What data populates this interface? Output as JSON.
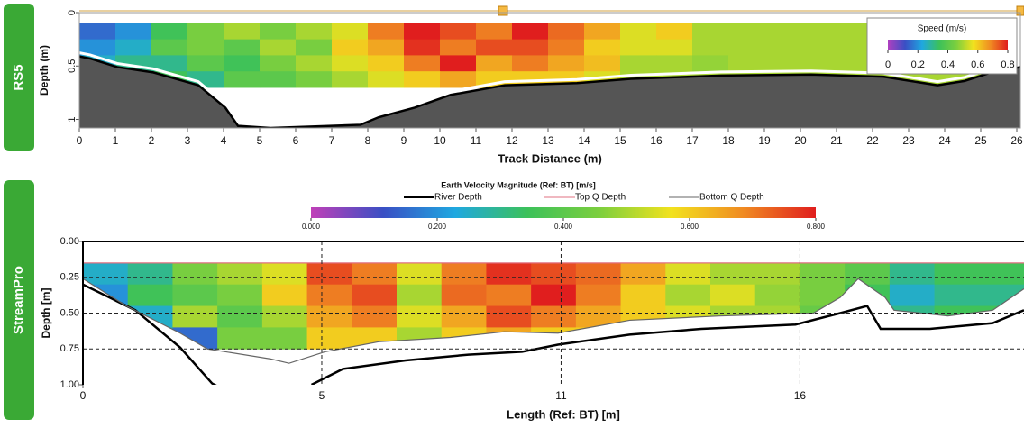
{
  "chart_data": [
    {
      "type": "heatmap",
      "label": "RS5",
      "xlabel": "Track Distance (m)",
      "ylabel": "Depth (m)",
      "xlim": [
        0,
        26.1
      ],
      "xticks": [
        0,
        1,
        2,
        3,
        4,
        5,
        6,
        7,
        8,
        9,
        10,
        11,
        12,
        13,
        14,
        15,
        16,
        17,
        18,
        19,
        20,
        21,
        22,
        23,
        24,
        25,
        26
      ],
      "ylim": [
        0,
        1.08
      ],
      "yticks": [
        0,
        0.5,
        1
      ],
      "x_edges": [
        0,
        1,
        2,
        3,
        4,
        5,
        6,
        7,
        8,
        9,
        10,
        11,
        12,
        13,
        14,
        15,
        16,
        17,
        18,
        19,
        20,
        21,
        22,
        23,
        24,
        25,
        26
      ],
      "depth_edges": [
        0.1,
        0.25,
        0.4,
        0.55,
        0.7
      ],
      "values": [
        [
          0.15,
          0.2,
          0.35,
          0.45,
          0.5,
          0.45,
          0.5,
          0.55,
          0.7,
          0.8,
          0.75,
          0.7,
          0.8,
          0.72,
          0.65,
          0.55,
          0.6,
          0.5,
          0.5,
          0.5,
          0.5,
          0.5,
          0.5,
          0.5,
          0.5,
          0.5
        ],
        [
          0.2,
          0.25,
          0.4,
          0.45,
          0.4,
          0.5,
          0.45,
          0.6,
          0.65,
          0.78,
          0.7,
          0.75,
          0.75,
          0.7,
          0.6,
          0.55,
          0.55,
          0.5,
          0.5,
          0.5,
          0.5,
          0.5,
          0.5,
          0.5,
          0.5,
          0.5
        ],
        [
          0.25,
          0.3,
          0.3,
          0.4,
          0.35,
          0.45,
          0.5,
          0.55,
          0.6,
          0.7,
          0.8,
          0.65,
          0.7,
          0.65,
          0.62,
          0.5,
          0.5,
          0.48,
          0.5,
          0.5,
          0.5,
          0.5,
          0.5,
          0.5,
          0.5,
          0.5
        ],
        [
          0.3,
          0.3,
          0.35,
          0.3,
          0.4,
          0.4,
          0.45,
          0.5,
          0.55,
          0.6,
          0.65,
          0.6,
          0.6,
          0.6,
          0.55,
          0.5,
          0.5,
          0.5,
          0.5,
          0.5,
          0.5,
          0.5,
          0.5,
          0.5,
          0.5,
          0.5
        ]
      ],
      "clim": [
        0,
        0.8
      ],
      "colorbar_title": "Speed (m/s)",
      "colorbar_ticks": [
        0,
        0.2,
        0.4,
        0.6,
        0.8
      ],
      "colorscale": [
        "#b040c0",
        "#3a4fc4",
        "#1fa8e0",
        "#3cc15a",
        "#7ccf3e",
        "#f2e21e",
        "#f08a22",
        "#e01e1e"
      ],
      "river_depth": {
        "color": "#000000",
        "fill": "#555555",
        "x": [
          0,
          0.3,
          1.05,
          2.05,
          3.3,
          4.05,
          4.4,
          5.3,
          7.8,
          8.3,
          9.3,
          10.3,
          11.8,
          13.8,
          15.3,
          17.8,
          20.3,
          22.3,
          23.8,
          24.55,
          25.3,
          26.1
        ],
        "values": [
          0.41,
          0.43,
          0.51,
          0.56,
          0.68,
          0.89,
          1.06,
          1.08,
          1.05,
          0.98,
          0.89,
          0.77,
          0.68,
          0.66,
          0.62,
          0.59,
          0.58,
          0.6,
          0.68,
          0.64,
          0.56,
          0.51
        ]
      }
    },
    {
      "type": "heatmap",
      "label": "StreamPro",
      "title": "Earth Velocity Magnitude (Ref: BT) [m/s]",
      "xlabel": "Length (Ref: BT) [m]",
      "ylabel": "Depth [m]",
      "xlim": [
        0,
        21
      ],
      "xticks": [
        0,
        {
          "value": 5.33,
          "label": "5"
        },
        {
          "value": 10.67,
          "label": "11"
        },
        16
      ],
      "ylim": [
        0,
        1
      ],
      "yticks": [
        {
          "value": 0,
          "label": "0.00"
        },
        {
          "value": 0.25,
          "label": "0.25"
        },
        {
          "value": 0.5,
          "label": "0.50"
        },
        {
          "value": 0.75,
          "label": "0.75"
        },
        {
          "value": 1,
          "label": "1.00"
        }
      ],
      "x_edges": [
        0,
        1,
        2,
        3,
        4,
        5,
        6,
        7,
        8,
        9,
        10,
        11,
        12,
        13,
        14,
        15,
        16,
        17,
        18,
        19,
        21
      ],
      "depth_edges": [
        0.15,
        0.3,
        0.45,
        0.6,
        0.75
      ],
      "values": [
        [
          0.25,
          0.3,
          0.45,
          0.5,
          0.55,
          0.75,
          0.7,
          0.55,
          0.7,
          0.78,
          0.75,
          0.72,
          0.65,
          0.55,
          0.5,
          0.5,
          0.45,
          0.4,
          0.3,
          0.35
        ],
        [
          0.2,
          0.35,
          0.4,
          0.45,
          0.6,
          0.7,
          0.75,
          0.5,
          0.72,
          0.7,
          0.8,
          0.7,
          0.6,
          0.5,
          0.55,
          0.48,
          0.45,
          0.35,
          0.25,
          0.3
        ],
        [
          0.3,
          0.25,
          0.5,
          0.4,
          0.5,
          0.65,
          0.7,
          0.55,
          0.65,
          0.75,
          0.7,
          0.65,
          0.6,
          0.55,
          0.5,
          0.5,
          0.42,
          0.4,
          0.3,
          0.35
        ],
        [
          0.35,
          0.3,
          0.15,
          0.45,
          0.45,
          0.6,
          0.6,
          0.5,
          0.6,
          0.65,
          0.6,
          0.6,
          0.55,
          0.5,
          0.5,
          0.45,
          0.4,
          0.4,
          0.35,
          0.4
        ]
      ],
      "clim": [
        0,
        0.8
      ],
      "colorbar_ticks": [
        {
          "value": 0,
          "label": "0.000"
        },
        {
          "value": 0.2,
          "label": "0.200"
        },
        {
          "value": 0.4,
          "label": "0.400"
        },
        {
          "value": 0.6,
          "label": "0.600"
        },
        {
          "value": 0.8,
          "label": "0.800"
        }
      ],
      "colorscale": [
        "#c040b8",
        "#3a4fc4",
        "#1fa8e0",
        "#3cc15a",
        "#7ccf3e",
        "#f2e21e",
        "#f08a22",
        "#e01e1e"
      ],
      "series": [
        {
          "name": "River Depth",
          "color": "#000000",
          "x": [
            0,
            1.17,
            2.17,
            2.88,
            3.4,
            4.2,
            5.1,
            5.8,
            7.2,
            8.6,
            9.8,
            10.6,
            12.2,
            13.8,
            15.9,
            16.9,
            17.5,
            17.8,
            18.9,
            20.3,
            21
          ],
          "values": [
            0.3,
            0.48,
            0.74,
            0.99,
            1.08,
            null,
            1.0,
            0.89,
            0.83,
            0.79,
            0.77,
            0.72,
            0.65,
            0.61,
            0.58,
            0.5,
            0.45,
            0.61,
            0.61,
            0.57,
            0.48
          ]
        },
        {
          "name": "Top Q Depth",
          "color": "#e07080",
          "x": [
            0,
            21
          ],
          "values": [
            0.15,
            0.15
          ]
        },
        {
          "name": "Bottom Q Depth",
          "color": "#666666",
          "x": [
            0,
            0.97,
            2.17,
            2.78,
            4.19,
            4.6,
            5.4,
            6.6,
            8.2,
            9.4,
            10.6,
            12.2,
            14.2,
            16.3,
            16.9,
            17.3,
            17.9,
            18.1,
            19.3,
            20.3,
            21
          ],
          "values": [
            0.26,
            0.45,
            0.64,
            0.75,
            0.82,
            0.85,
            0.77,
            0.7,
            0.67,
            0.63,
            0.64,
            0.55,
            0.52,
            0.5,
            0.39,
            0.26,
            0.39,
            0.48,
            0.52,
            0.48,
            0.33
          ]
        }
      ]
    }
  ]
}
